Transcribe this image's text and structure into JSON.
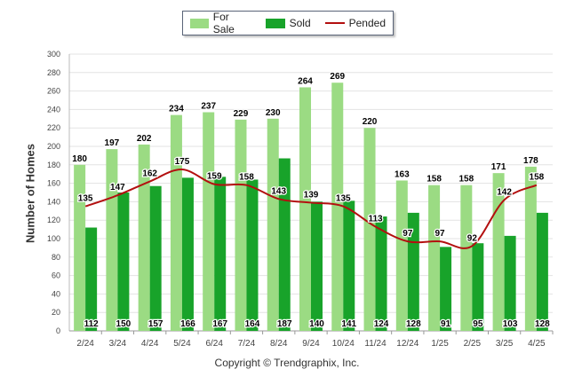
{
  "legend": {
    "for_sale": "For Sale",
    "sold": "Sold",
    "pended": "Pended"
  },
  "colors": {
    "for_sale": "#9bdb83",
    "sold": "#18a32a",
    "pended": "#b30f0f"
  },
  "footer": {
    "copyright": "Copyright © Trendgraphix, Inc."
  },
  "chart_data": {
    "type": "bar",
    "title": "",
    "xlabel": "",
    "ylabel": "Number of Homes",
    "ylim": [
      0,
      300
    ],
    "yticks": [
      0,
      20,
      40,
      60,
      80,
      100,
      120,
      140,
      160,
      180,
      200,
      220,
      240,
      260,
      280,
      300
    ],
    "grid": true,
    "legend_position": "top-center",
    "categories": [
      "2/24",
      "3/24",
      "4/24",
      "5/24",
      "6/24",
      "7/24",
      "8/24",
      "9/24",
      "10/24",
      "11/24",
      "12/24",
      "1/25",
      "2/25",
      "3/25",
      "4/25"
    ],
    "series": [
      {
        "name": "For Sale",
        "kind": "bar",
        "values": [
          180,
          197,
          202,
          234,
          237,
          229,
          230,
          264,
          269,
          220,
          163,
          158,
          158,
          171,
          178
        ]
      },
      {
        "name": "Sold",
        "kind": "bar",
        "values": [
          112,
          150,
          157,
          166,
          167,
          164,
          187,
          140,
          141,
          124,
          128,
          91,
          95,
          103,
          128
        ]
      },
      {
        "name": "Pended",
        "kind": "line",
        "values": [
          135,
          147,
          162,
          175,
          159,
          158,
          143,
          139,
          135,
          113,
          97,
          97,
          92,
          142,
          158
        ]
      }
    ]
  }
}
